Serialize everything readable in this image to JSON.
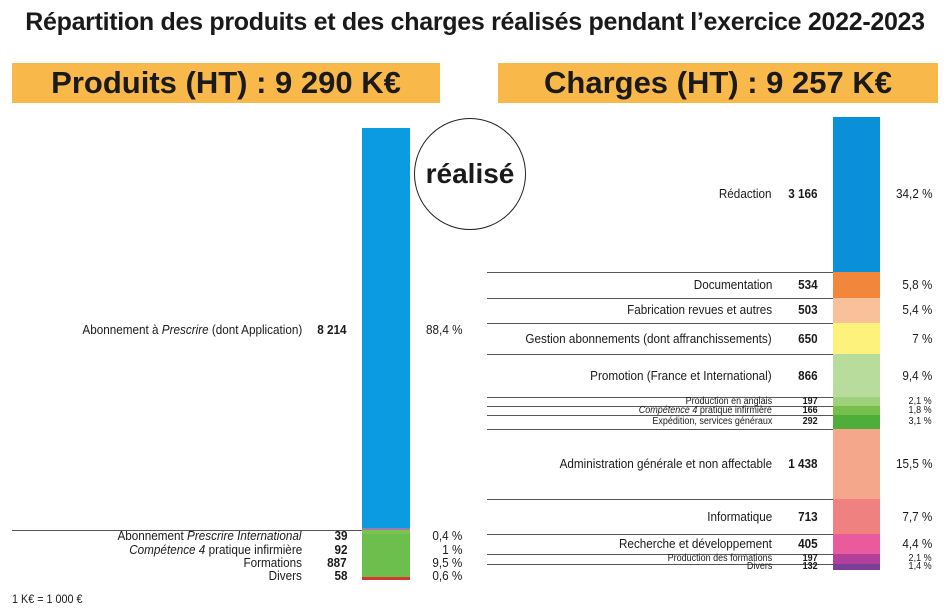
{
  "title": "Répartition des produits et des charges réalisés pendant l’exercice 2022-2023",
  "produits_header": "Produits (HT) : 9 290 K€",
  "charges_header": "Charges (HT) : 9 257 K€",
  "stamp": "réalisé",
  "footnote": "1 K€ = 1 000 €",
  "chart_data": [
    {
      "type": "bar",
      "stacked": true,
      "title": "Produits (HT) : 9 290 K€",
      "unit": "K€",
      "segments": [
        {
          "label": "Abonnement à Prescrire (dont Application)",
          "value": 8214,
          "percent": "88,4 %",
          "color": "#0a9be1"
        },
        {
          "label": "Abonnement Prescrire International",
          "value": 39,
          "percent": "0,4 %",
          "color": "#9b7bb3"
        },
        {
          "label": "Compétence 4 pratique infirmière",
          "value": 92,
          "percent": "1 %",
          "color": "#7cc254"
        },
        {
          "label": "Formations",
          "value": 887,
          "percent": "9,5 %",
          "color": "#6cbf4c"
        },
        {
          "label": "Divers",
          "value": 58,
          "percent": "0,6 %",
          "color": "#d63a2f"
        }
      ]
    },
    {
      "type": "bar",
      "stacked": true,
      "title": "Charges (HT) : 9 257 K€",
      "unit": "K€",
      "segments": [
        {
          "label": "Rédaction",
          "value": 3166,
          "percent": "34,2 %",
          "color": "#0a90d8"
        },
        {
          "label": "Documentation",
          "value": 534,
          "percent": "5,8 %",
          "color": "#f2873c"
        },
        {
          "label": "Fabrication revues et autres",
          "value": 503,
          "percent": "5,4 %",
          "color": "#f8c19a"
        },
        {
          "label": "Gestion abonnements (dont affranchissements)",
          "value": 650,
          "percent": "7 %",
          "color": "#fdf27c"
        },
        {
          "label": "Promotion (France et International)",
          "value": 866,
          "percent": "9,4 %",
          "color": "#b8dc9c"
        },
        {
          "label": "Production en anglais",
          "value": 197,
          "percent": "2,1 %",
          "color": "#9fd07b"
        },
        {
          "label": "Compétence 4 pratique infirmière",
          "value": 166,
          "percent": "1,8 %",
          "color": "#76bf4c"
        },
        {
          "label": "Expédition, services généraux",
          "value": 292,
          "percent": "3,1 %",
          "color": "#4fae3a"
        },
        {
          "label": "Administration générale et non affectable",
          "value": 1438,
          "percent": "15,5 %",
          "color": "#f5a78b"
        },
        {
          "label": "Informatique",
          "value": 713,
          "percent": "7,7 %",
          "color": "#f08181"
        },
        {
          "label": "Recherche et développement",
          "value": 405,
          "percent": "4,4 %",
          "color": "#ea5b9e"
        },
        {
          "label": "Production des formations",
          "value": 197,
          "percent": "2,1 %",
          "color": "#b2409a"
        },
        {
          "label": "Divers",
          "value": 132,
          "percent": "1,4 %",
          "color": "#7a3f96"
        }
      ]
    }
  ]
}
